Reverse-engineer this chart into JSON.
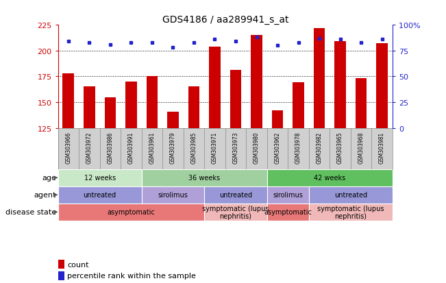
{
  "title": "GDS4186 / aa289941_s_at",
  "samples": [
    "GSM303966",
    "GSM303972",
    "GSM303986",
    "GSM303991",
    "GSM303961",
    "GSM303979",
    "GSM303985",
    "GSM303971",
    "GSM303973",
    "GSM303980",
    "GSM303962",
    "GSM303978",
    "GSM303982",
    "GSM303965",
    "GSM303968",
    "GSM303981"
  ],
  "counts": [
    178,
    165,
    155,
    170,
    175,
    141,
    165,
    204,
    181,
    215,
    142,
    169,
    222,
    209,
    173,
    207
  ],
  "percentiles": [
    84,
    83,
    81,
    83,
    83,
    78,
    83,
    86,
    84,
    88,
    80,
    83,
    87,
    86,
    83,
    86
  ],
  "ylim_left": [
    125,
    225
  ],
  "ylim_right": [
    0,
    100
  ],
  "yticks_left": [
    125,
    150,
    175,
    200,
    225
  ],
  "yticks_right": [
    0,
    25,
    50,
    75,
    100
  ],
  "bar_color": "#cc0000",
  "dot_color": "#2222cc",
  "grid_color": "#000000",
  "bg_color": "#ffffff",
  "sample_bg_color": "#d0d0d0",
  "age_groups": [
    {
      "label": "12 weeks",
      "start": 0,
      "end": 4,
      "color": "#c8e8c8"
    },
    {
      "label": "36 weeks",
      "start": 4,
      "end": 10,
      "color": "#a0d0a0"
    },
    {
      "label": "42 weeks",
      "start": 10,
      "end": 16,
      "color": "#60c060"
    }
  ],
  "agent_groups": [
    {
      "label": "untreated",
      "start": 0,
      "end": 4,
      "color": "#9898d8"
    },
    {
      "label": "sirolimus",
      "start": 4,
      "end": 7,
      "color": "#b0a0d8"
    },
    {
      "label": "untreated",
      "start": 7,
      "end": 10,
      "color": "#9898d8"
    },
    {
      "label": "sirolimus",
      "start": 10,
      "end": 12,
      "color": "#b0a0d8"
    },
    {
      "label": "untreated",
      "start": 12,
      "end": 16,
      "color": "#9898d8"
    }
  ],
  "disease_groups": [
    {
      "label": "asymptomatic",
      "start": 0,
      "end": 7,
      "color": "#e87878"
    },
    {
      "label": "symptomatic (lupus\nnephritis)",
      "start": 7,
      "end": 10,
      "color": "#f0b8b8"
    },
    {
      "label": "asymptomatic",
      "start": 10,
      "end": 12,
      "color": "#e87878"
    },
    {
      "label": "symptomatic (lupus\nnephritis)",
      "start": 12,
      "end": 16,
      "color": "#f0b8b8"
    }
  ],
  "left_axis_color": "#cc0000",
  "right_axis_color": "#2222cc",
  "legend_items": [
    {
      "label": "count",
      "color": "#cc0000",
      "marker": "s"
    },
    {
      "label": "percentile rank within the sample",
      "color": "#2222cc",
      "marker": "s"
    }
  ]
}
